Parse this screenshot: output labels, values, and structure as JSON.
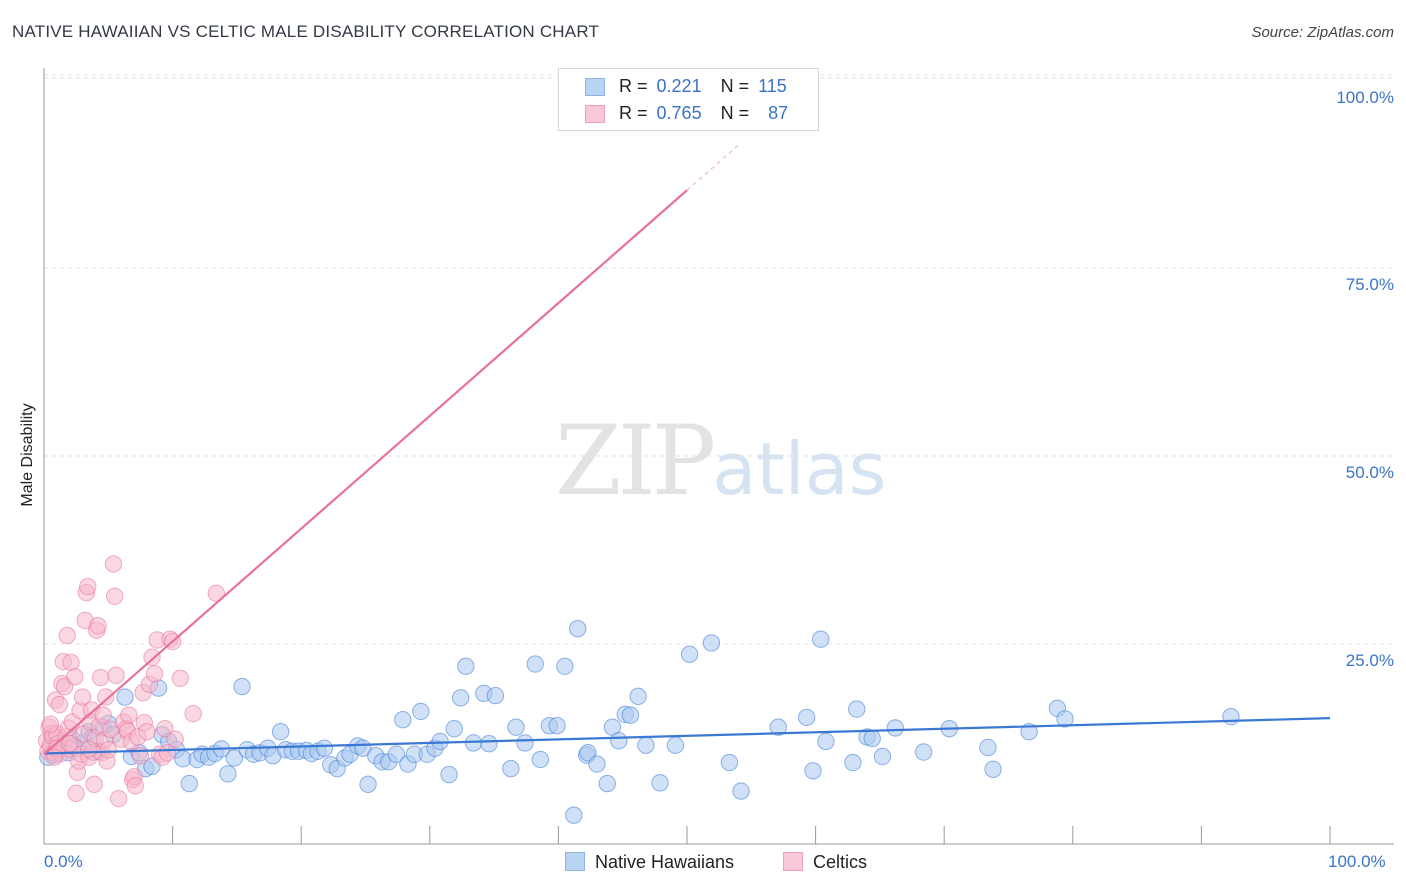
{
  "header": {
    "title": "NATIVE HAWAIIAN VS CELTIC MALE DISABILITY CORRELATION CHART",
    "source": "Source: ZipAtlas.com"
  },
  "watermark": {
    "zip": "ZIP",
    "atlas": "atlas"
  },
  "legend": {
    "rows": [
      {
        "r_label": "R =",
        "r_value": "0.221",
        "n_label": "N =",
        "n_value": "115",
        "color": "#a9c8f0"
      },
      {
        "r_label": "R =",
        "r_value": "0.765",
        "n_label": "N =",
        "n_value": "87",
        "color": "#f6b8cb"
      }
    ]
  },
  "bottom_legend": {
    "items": [
      {
        "label": "Native Hawaiians",
        "color": "#a9c8f0"
      },
      {
        "label": "Celtics",
        "color": "#f6b8cb"
      }
    ]
  },
  "chart_data": {
    "type": "scatter",
    "title": "NATIVE HAWAIIAN VS CELTIC MALE DISABILITY CORRELATION CHART",
    "xlabel": "",
    "ylabel": "Male Disability",
    "xlim": [
      0,
      100
    ],
    "ylim": [
      0,
      100
    ],
    "x_tick_labels": [
      "0.0%",
      "100.0%"
    ],
    "y_tick_labels": [
      "25.0%",
      "50.0%",
      "75.0%",
      "100.0%"
    ],
    "y_ticks": [
      25,
      50,
      75,
      100
    ],
    "grid": "dashed horizontal",
    "legend_position": "top-center",
    "series": [
      {
        "name": "Native Hawaiians",
        "color": "#3a78d4",
        "fill": "#a9c8f0",
        "trend": {
          "x": [
            0,
            100
          ],
          "y": [
            12.3,
            17.0
          ]
        },
        "points": [
          [
            0.3,
            11.8
          ],
          [
            0.6,
            13.2
          ],
          [
            0.8,
            12.1
          ],
          [
            1.2,
            12.8
          ],
          [
            1.5,
            13.6
          ],
          [
            1.9,
            12.4
          ],
          [
            2.2,
            14.2
          ],
          [
            2.6,
            13.0
          ],
          [
            3.1,
            13.8
          ],
          [
            3.5,
            15.2
          ],
          [
            3.8,
            14.5
          ],
          [
            4.2,
            12.6
          ],
          [
            4.6,
            15.8
          ],
          [
            5.0,
            16.3
          ],
          [
            5.4,
            14.8
          ],
          [
            6.3,
            19.8
          ],
          [
            6.8,
            11.9
          ],
          [
            7.4,
            12.4
          ],
          [
            7.9,
            10.3
          ],
          [
            8.4,
            10.6
          ],
          [
            8.9,
            21.0
          ],
          [
            9.2,
            14.8
          ],
          [
            9.7,
            13.9
          ],
          [
            10.3,
            12.8
          ],
          [
            10.8,
            11.6
          ],
          [
            11.3,
            8.3
          ],
          [
            11.9,
            11.5
          ],
          [
            12.3,
            12.2
          ],
          [
            12.8,
            11.8
          ],
          [
            13.3,
            12.3
          ],
          [
            13.8,
            12.9
          ],
          [
            14.3,
            9.6
          ],
          [
            14.8,
            11.7
          ],
          [
            15.4,
            21.2
          ],
          [
            15.8,
            12.8
          ],
          [
            16.3,
            12.2
          ],
          [
            16.8,
            12.4
          ],
          [
            17.4,
            13.0
          ],
          [
            17.8,
            12.0
          ],
          [
            18.4,
            15.2
          ],
          [
            18.8,
            12.8
          ],
          [
            19.3,
            12.6
          ],
          [
            19.8,
            12.6
          ],
          [
            20.4,
            12.7
          ],
          [
            20.8,
            12.3
          ],
          [
            21.3,
            12.6
          ],
          [
            21.8,
            13.0
          ],
          [
            22.3,
            10.8
          ],
          [
            22.8,
            10.3
          ],
          [
            23.4,
            11.7
          ],
          [
            23.8,
            12.2
          ],
          [
            24.4,
            13.3
          ],
          [
            24.8,
            13.0
          ],
          [
            25.2,
            8.2
          ],
          [
            25.8,
            12.0
          ],
          [
            26.3,
            11.2
          ],
          [
            26.8,
            11.2
          ],
          [
            27.4,
            12.2
          ],
          [
            27.9,
            16.8
          ],
          [
            28.3,
            10.9
          ],
          [
            28.8,
            12.2
          ],
          [
            29.3,
            17.9
          ],
          [
            29.8,
            12.2
          ],
          [
            30.4,
            13.0
          ],
          [
            30.8,
            13.9
          ],
          [
            31.5,
            9.5
          ],
          [
            31.9,
            15.6
          ],
          [
            32.4,
            19.7
          ],
          [
            32.8,
            23.9
          ],
          [
            33.4,
            13.7
          ],
          [
            34.2,
            20.3
          ],
          [
            34.6,
            13.6
          ],
          [
            35.1,
            20.0
          ],
          [
            36.3,
            10.3
          ],
          [
            36.7,
            15.8
          ],
          [
            37.4,
            13.7
          ],
          [
            38.2,
            24.2
          ],
          [
            38.6,
            11.5
          ],
          [
            39.3,
            16.0
          ],
          [
            39.9,
            16.0
          ],
          [
            40.5,
            23.9
          ],
          [
            41.2,
            4.1
          ],
          [
            41.5,
            28.9
          ],
          [
            42.2,
            12.1
          ],
          [
            42.3,
            12.4
          ],
          [
            43.0,
            10.9
          ],
          [
            43.8,
            8.3
          ],
          [
            44.2,
            15.8
          ],
          [
            44.7,
            14.0
          ],
          [
            45.2,
            17.5
          ],
          [
            45.6,
            17.4
          ],
          [
            46.2,
            19.9
          ],
          [
            46.8,
            13.4
          ],
          [
            47.9,
            8.4
          ],
          [
            49.1,
            13.4
          ],
          [
            50.2,
            25.5
          ],
          [
            51.9,
            27.0
          ],
          [
            53.3,
            11.1
          ],
          [
            54.2,
            7.3
          ],
          [
            57.1,
            15.8
          ],
          [
            59.3,
            17.1
          ],
          [
            59.8,
            10.0
          ],
          [
            60.4,
            27.5
          ],
          [
            60.8,
            13.9
          ],
          [
            62.9,
            11.1
          ],
          [
            63.2,
            18.2
          ],
          [
            64.0,
            14.5
          ],
          [
            64.4,
            14.3
          ],
          [
            65.2,
            11.9
          ],
          [
            66.2,
            15.7
          ],
          [
            68.4,
            12.5
          ],
          [
            70.4,
            15.6
          ],
          [
            73.4,
            13.1
          ],
          [
            73.8,
            10.2
          ],
          [
            76.6,
            15.2
          ],
          [
            78.8,
            18.3
          ],
          [
            79.4,
            16.9
          ],
          [
            92.3,
            17.2
          ]
        ]
      },
      {
        "name": "Celtics",
        "color": "#e8709a",
        "fill": "#f6b8cb",
        "trend": {
          "x": [
            0,
            50
          ],
          "y": [
            12.2,
            87.2
          ]
        },
        "trend_dashed": {
          "x": [
            50,
            54
          ],
          "y": [
            87.2,
            93.2
          ]
        },
        "points": [
          [
            0.2,
            14.0
          ],
          [
            0.3,
            12.6
          ],
          [
            0.4,
            15.8
          ],
          [
            0.5,
            13.4
          ],
          [
            0.6,
            15.0
          ],
          [
            0.7,
            14.6
          ],
          [
            0.8,
            12.4
          ],
          [
            0.9,
            19.4
          ],
          [
            1.0,
            14.9
          ],
          [
            1.1,
            13.6
          ],
          [
            1.2,
            18.8
          ],
          [
            1.3,
            12.3
          ],
          [
            1.4,
            21.6
          ],
          [
            1.5,
            24.5
          ],
          [
            1.6,
            21.2
          ],
          [
            1.7,
            14.5
          ],
          [
            1.8,
            28.0
          ],
          [
            1.9,
            15.7
          ],
          [
            2.0,
            12.9
          ],
          [
            2.1,
            24.4
          ],
          [
            2.2,
            16.5
          ],
          [
            2.3,
            13.2
          ],
          [
            2.4,
            22.5
          ],
          [
            2.5,
            7.0
          ],
          [
            2.6,
            9.8
          ],
          [
            2.7,
            11.3
          ],
          [
            2.8,
            18.0
          ],
          [
            2.9,
            12.2
          ],
          [
            3.0,
            19.8
          ],
          [
            3.1,
            14.9
          ],
          [
            3.2,
            30.0
          ],
          [
            3.3,
            33.7
          ],
          [
            3.4,
            34.5
          ],
          [
            3.5,
            11.8
          ],
          [
            3.6,
            16.5
          ],
          [
            3.7,
            18.1
          ],
          [
            3.8,
            12.5
          ],
          [
            3.9,
            8.2
          ],
          [
            4.0,
            14.3
          ],
          [
            4.1,
            28.7
          ],
          [
            4.2,
            29.3
          ],
          [
            4.3,
            15.9
          ],
          [
            4.4,
            22.4
          ],
          [
            4.5,
            12.4
          ],
          [
            4.6,
            17.4
          ],
          [
            4.7,
            14.1
          ],
          [
            4.8,
            19.8
          ],
          [
            4.9,
            11.3
          ],
          [
            5.0,
            12.8
          ],
          [
            5.2,
            15.5
          ],
          [
            5.4,
            37.5
          ],
          [
            5.5,
            33.2
          ],
          [
            5.6,
            22.7
          ],
          [
            5.8,
            6.3
          ],
          [
            6.0,
            14.2
          ],
          [
            6.2,
            16.5
          ],
          [
            6.4,
            15.6
          ],
          [
            6.5,
            15.3
          ],
          [
            6.6,
            17.4
          ],
          [
            6.8,
            13.9
          ],
          [
            6.9,
            8.8
          ],
          [
            7.0,
            9.2
          ],
          [
            7.1,
            8.0
          ],
          [
            7.3,
            14.5
          ],
          [
            7.5,
            12.0
          ],
          [
            7.7,
            20.4
          ],
          [
            7.8,
            16.4
          ],
          [
            8.0,
            15.2
          ],
          [
            8.2,
            21.5
          ],
          [
            8.4,
            25.1
          ],
          [
            8.6,
            22.9
          ],
          [
            8.8,
            27.4
          ],
          [
            9.0,
            12.2
          ],
          [
            9.2,
            11.8
          ],
          [
            9.4,
            15.6
          ],
          [
            9.6,
            12.4
          ],
          [
            9.8,
            27.5
          ],
          [
            10.0,
            27.2
          ],
          [
            10.2,
            14.2
          ],
          [
            10.6,
            22.3
          ],
          [
            11.6,
            17.6
          ],
          [
            13.4,
            33.6
          ],
          [
            0.5,
            16.2
          ],
          [
            1.0,
            13.0
          ],
          [
            0.8,
            11.8
          ],
          [
            2.0,
            13.6
          ],
          [
            3.5,
            12.9
          ]
        ]
      }
    ]
  }
}
